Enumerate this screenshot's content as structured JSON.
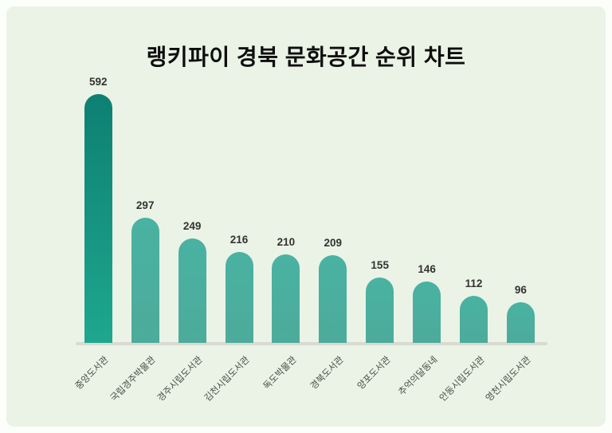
{
  "title": "랭키파이 경북 문화공간 순위 차트",
  "colors": {
    "page_background": "#fcfefa",
    "panel_background": "#eaf3e6",
    "bar_default_top": "#49b2a2",
    "bar_default_bottom": "#4dab9b",
    "bar_highlight_top": "#0d8073",
    "bar_highlight_bottom": "#1ea78f",
    "baseline": "#d7dbd2",
    "title_text": "#0e0e0e",
    "value_text": "#333332",
    "category_text": "#4b4b46"
  },
  "chart_data": {
    "type": "bar",
    "title": "랭키파이 경북 문화공간 순위 차트",
    "categories": [
      "중앙도서관",
      "국립경주박물관",
      "경주시립도서관",
      "김천시립도서관",
      "독도박물관",
      "경북도서관",
      "양포도서관",
      "추억의달동네",
      "안동시립도서관",
      "영천시립도서관"
    ],
    "values": [
      592,
      297,
      249,
      216,
      210,
      209,
      155,
      146,
      112,
      96
    ],
    "xlabel": "",
    "ylabel": "",
    "ylim": [
      0,
      650
    ],
    "grid": false,
    "legend": "none",
    "value_labels": "above-bars",
    "highlighted_bar_index": 0,
    "bar_shape": "rounded-top"
  }
}
